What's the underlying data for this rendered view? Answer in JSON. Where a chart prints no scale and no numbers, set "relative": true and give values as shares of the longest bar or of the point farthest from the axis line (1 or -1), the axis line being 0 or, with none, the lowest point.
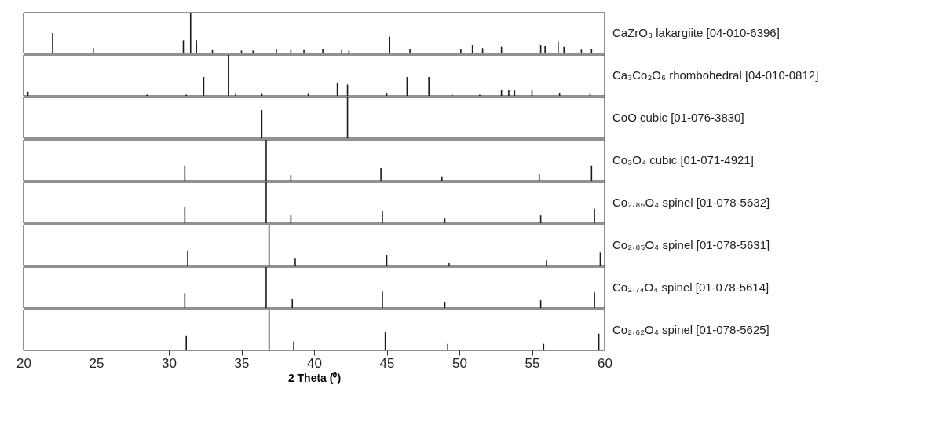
{
  "chart_data": [
    {
      "type": "bar",
      "relative": true,
      "xlim": [
        20,
        60
      ],
      "tick_labels": false,
      "grid": false,
      "x": [
        22.0,
        24.8,
        31.0,
        31.5,
        31.9,
        33.0,
        35.0,
        35.8,
        37.4,
        38.4,
        39.3,
        40.6,
        41.9,
        42.4,
        45.2,
        46.6,
        50.1,
        50.9,
        51.6,
        52.9,
        55.6,
        55.9,
        56.8,
        57.2,
        58.4,
        59.1
      ],
      "series": [
        {
          "name": "CaZrO₃ lakargiite [04-010-6396]",
          "color": "#1a1a1a",
          "values": [
            0.5,
            0.13,
            0.32,
            1.0,
            0.32,
            0.08,
            0.07,
            0.07,
            0.11,
            0.08,
            0.08,
            0.11,
            0.08,
            0.07,
            0.41,
            0.11,
            0.11,
            0.21,
            0.13,
            0.16,
            0.21,
            0.18,
            0.3,
            0.16,
            0.09,
            0.11
          ]
        }
      ]
    },
    {
      "type": "bar",
      "relative": true,
      "xlim": [
        20,
        60
      ],
      "tick_labels": false,
      "grid": false,
      "x": [
        20.3,
        28.5,
        31.2,
        32.4,
        34.1,
        34.6,
        36.4,
        39.6,
        41.6,
        42.3,
        45.0,
        46.4,
        47.9,
        49.5,
        51.4,
        52.9,
        53.4,
        53.8,
        55.0,
        56.9,
        59.0
      ],
      "series": [
        {
          "name": "Ca₃Co₂O₆ rhombohedral [04-010-0812]",
          "color": "#1a1a1a",
          "values": [
            0.1,
            0.03,
            0.03,
            0.46,
            1.0,
            0.05,
            0.05,
            0.05,
            0.31,
            0.28,
            0.07,
            0.46,
            0.46,
            0.03,
            0.03,
            0.15,
            0.15,
            0.13,
            0.13,
            0.07,
            0.05
          ]
        }
      ]
    },
    {
      "type": "bar",
      "relative": true,
      "xlim": [
        20,
        60
      ],
      "tick_labels": false,
      "grid": false,
      "x": [
        36.4,
        42.3
      ],
      "series": [
        {
          "name": "CoO cubic [01-076-3830]",
          "color": "#1a1a1a",
          "values": [
            0.69,
            1.0
          ]
        }
      ]
    },
    {
      "type": "bar",
      "relative": true,
      "xlim": [
        20,
        60
      ],
      "tick_labels": false,
      "grid": false,
      "x": [
        31.1,
        36.7,
        38.4,
        44.6,
        48.8,
        55.5,
        59.1
      ],
      "series": [
        {
          "name": "Co₃O₄ cubic [01-071-4921]",
          "color": "#1a1a1a",
          "values": [
            0.37,
            1.0,
            0.13,
            0.31,
            0.1,
            0.16,
            0.37
          ]
        }
      ]
    },
    {
      "type": "bar",
      "relative": true,
      "xlim": [
        20,
        60
      ],
      "tick_labels": false,
      "grid": false,
      "x": [
        31.1,
        36.7,
        38.4,
        44.7,
        49.0,
        55.6,
        59.3
      ],
      "series": [
        {
          "name": "Co₂.₈₆O₄ spinel [01-078-5632]",
          "color": "#1a1a1a",
          "values": [
            0.39,
            1.0,
            0.19,
            0.3,
            0.11,
            0.19,
            0.35
          ]
        }
      ]
    },
    {
      "type": "bar",
      "relative": true,
      "xlim": [
        20,
        60
      ],
      "tick_labels": false,
      "grid": false,
      "x": [
        31.3,
        36.9,
        38.7,
        45.0,
        49.3,
        56.0,
        59.7
      ],
      "series": [
        {
          "name": "Co₂.₈₅O₄ spinel [01-078-5631]",
          "color": "#1a1a1a",
          "values": [
            0.37,
            1.0,
            0.17,
            0.27,
            0.06,
            0.13,
            0.32
          ]
        }
      ]
    },
    {
      "type": "bar",
      "relative": true,
      "xlim": [
        20,
        60
      ],
      "tick_labels": false,
      "grid": false,
      "x": [
        31.1,
        36.7,
        38.5,
        44.7,
        49.0,
        55.6,
        59.3
      ],
      "series": [
        {
          "name": "Co₂.₇₄O₄ spinel [01-078-5614]",
          "color": "#1a1a1a",
          "values": [
            0.36,
            1.0,
            0.21,
            0.4,
            0.14,
            0.19,
            0.38
          ]
        }
      ]
    },
    {
      "type": "bar",
      "relative": true,
      "xlim": [
        20,
        60
      ],
      "tick_labels": "x",
      "grid": false,
      "xlabel": "2 Theta (⁰)",
      "xticks": [
        20,
        25,
        30,
        35,
        40,
        45,
        50,
        55,
        60
      ],
      "x": [
        31.2,
        36.9,
        38.6,
        44.9,
        49.2,
        55.8,
        59.6
      ],
      "series": [
        {
          "name": "Co₂.₆₂O₄ spinel [01-078-5625]",
          "color": "#1a1a1a",
          "values": [
            0.35,
            1.0,
            0.22,
            0.44,
            0.16,
            0.16,
            0.41
          ]
        }
      ]
    }
  ]
}
